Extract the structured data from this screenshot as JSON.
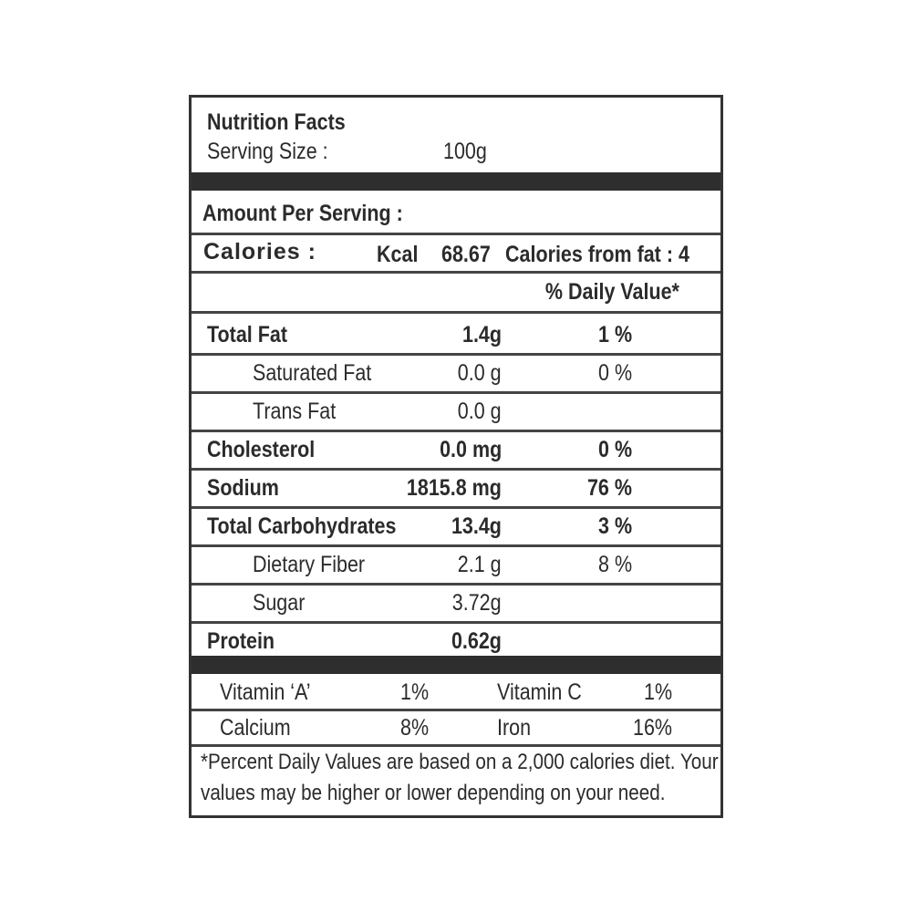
{
  "header": {
    "title": "Nutrition Facts",
    "serving_label": "Serving Size :",
    "serving_value": "100g"
  },
  "amount_per_serving": "Amount Per Serving :",
  "calories": {
    "label": "Calories :",
    "unit": "Kcal",
    "value": "68.67",
    "from_fat": "Calories from fat : 4"
  },
  "daily_value_header": "% Daily Value*",
  "nutrients": [
    {
      "name": "Total Fat",
      "amount": "1.4g",
      "dv": "1 %",
      "bold": true
    },
    {
      "name": "Saturated Fat",
      "amount": "0.0 g",
      "dv": "0 %",
      "bold": false
    },
    {
      "name": "Trans Fat",
      "amount": "0.0 g",
      "dv": "",
      "bold": false
    },
    {
      "name": "Cholesterol",
      "amount": "0.0 mg",
      "dv": "0 %",
      "bold": true
    },
    {
      "name": "Sodium",
      "amount": "1815.8 mg",
      "dv": "76 %",
      "bold": true
    },
    {
      "name": "Total Carbohydrates",
      "amount": "13.4g",
      "dv": "3 %",
      "bold": true
    },
    {
      "name": "Dietary Fiber",
      "amount": "2.1 g",
      "dv": "8 %",
      "bold": false
    },
    {
      "name": "Sugar",
      "amount": "3.72g",
      "dv": "",
      "bold": false
    },
    {
      "name": "Protein",
      "amount": "0.62g",
      "dv": "",
      "bold": true
    }
  ],
  "vitamins": [
    {
      "name1": "Vitamin ‘A’",
      "val1": "1%",
      "name2": "Vitamin C",
      "val2": "1%"
    },
    {
      "name1": "Calcium",
      "val1": "8%",
      "name2": "Iron",
      "val2": "16%"
    }
  ],
  "footnote": [
    "*Percent Daily Values are based on a 2,000 calories diet. Your",
    "values may be higher or lower depending on your need."
  ]
}
